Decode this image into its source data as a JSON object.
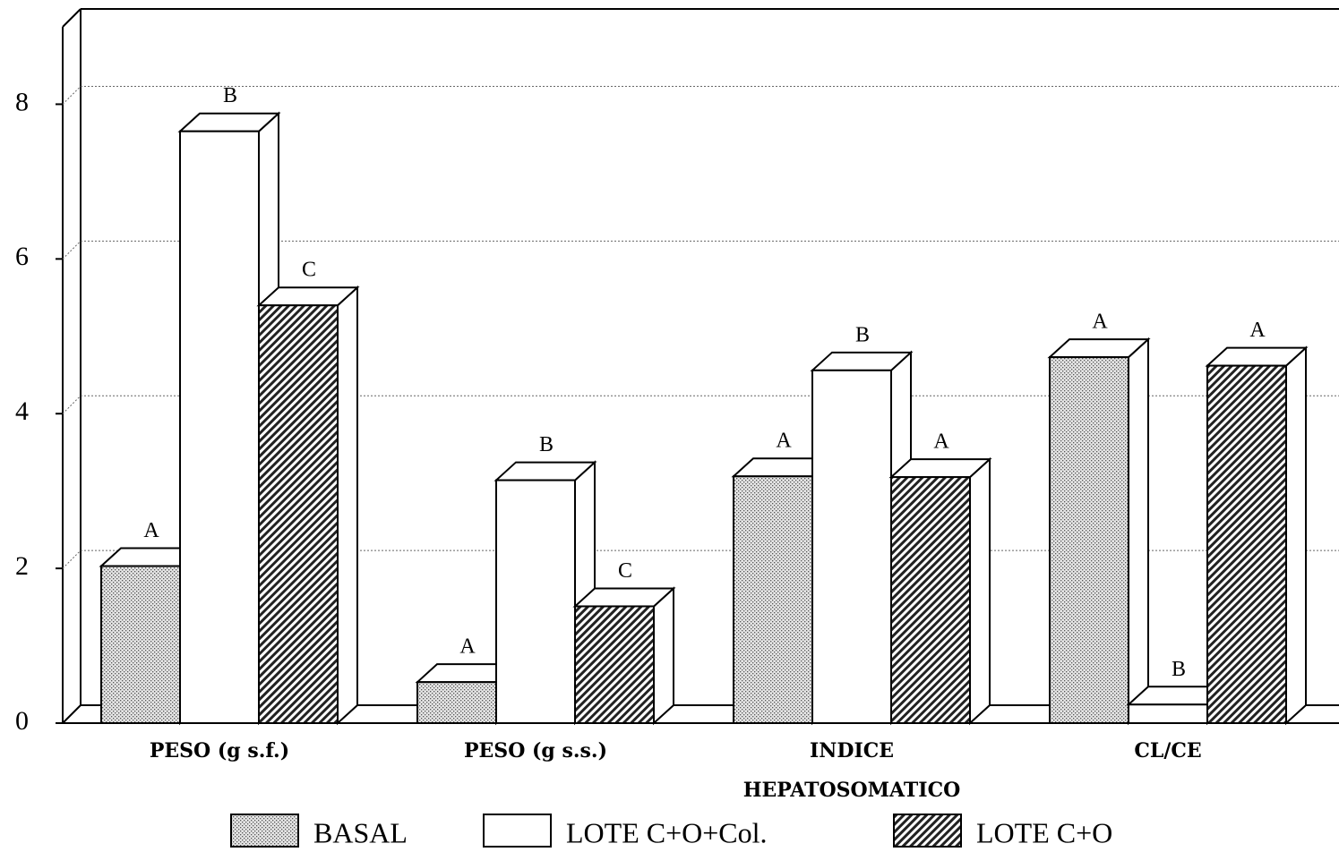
{
  "chart_data": {
    "type": "bar3d",
    "categories": [
      "PESO (g s.f.)",
      "PESO (g s.s.)",
      "INDICE\nHEPATOSOMATICO",
      "CL/CE"
    ],
    "series": [
      {
        "name": "BASAL",
        "color": "#000000",
        "pattern": "dots",
        "values": [
          2.03,
          0.53,
          3.19,
          4.73
        ],
        "letters": [
          "A",
          "A",
          "A",
          "A"
        ]
      },
      {
        "name": "LOTE C+O+Col.",
        "color": "#000000",
        "pattern": "none",
        "values": [
          7.65,
          3.14,
          4.56,
          0.24
        ],
        "letters": [
          "B",
          "B",
          "B",
          "B"
        ]
      },
      {
        "name": "LOTE C+O",
        "color": "#000000",
        "pattern": "hatch",
        "values": [
          5.4,
          1.51,
          3.18,
          4.62
        ],
        "letters": [
          "C",
          "C",
          "A",
          "A"
        ]
      }
    ],
    "ylim": [
      0,
      9
    ],
    "yticks": [
      0,
      2,
      4,
      6,
      8
    ],
    "grid": true,
    "legend": "bottom"
  }
}
